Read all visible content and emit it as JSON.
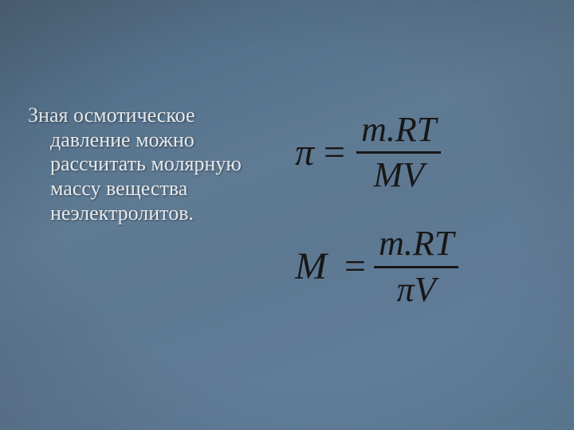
{
  "slide": {
    "background_gradient": [
      "#4e6578",
      "#54708a",
      "#5f7a93",
      "#5d7891",
      "#607b96",
      "#61819d"
    ],
    "text_color": "#e7eaed",
    "equation_color": "#171717",
    "paragraph_line1": "Зная осмотическое",
    "paragraph_rest": "давление можно рассчитать молярную массу вещества неэлектролитов.",
    "paragraph_fontsize": 26,
    "equation_fontsize": 48
  },
  "equations": [
    {
      "lhs": "π",
      "numerator": "m.RT",
      "denominator": "MV"
    },
    {
      "lhs": "M",
      "numerator": "m.RT",
      "denominator": "πV"
    }
  ]
}
